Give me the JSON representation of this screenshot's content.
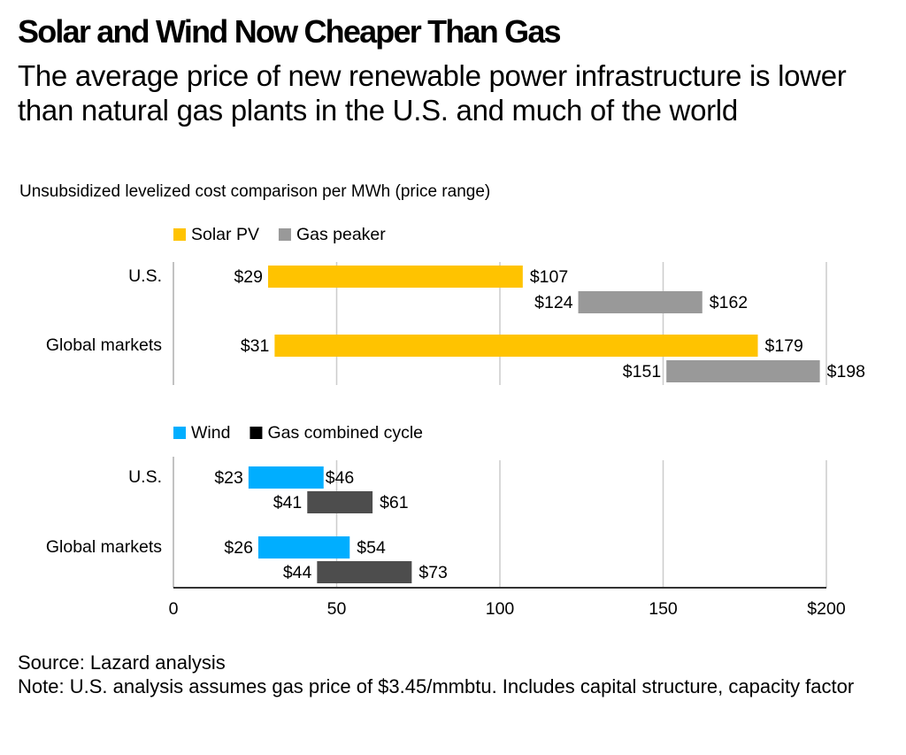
{
  "header": {
    "title": "Solar and Wind Now Cheaper Than Gas",
    "subtitle": "The average price of new renewable power infrastructure is lower than natural gas plants in the U.S. and much of the world",
    "units": "Unsubsidized levelized cost comparison per MWh (price range)"
  },
  "footer": {
    "source": "Source: Lazard analysis",
    "note": "Note: U.S. analysis assumes gas price of $3.45/mmbtu. Includes capital structure, capacity factor"
  },
  "chart_data": [
    {
      "type": "bar",
      "subtype": "floating-range-horizontal",
      "title": "Solar PV vs Gas peaker",
      "categories": [
        "U.S.",
        "Global markets"
      ],
      "series": [
        {
          "name": "Solar PV",
          "color": "#FFC300",
          "ranges": [
            [
              29,
              107
            ],
            [
              31,
              179
            ]
          ],
          "labels": [
            [
              "$29",
              "$107"
            ],
            [
              "$31",
              "$179"
            ]
          ]
        },
        {
          "name": "Gas peaker",
          "color": "#999999",
          "ranges": [
            [
              124,
              162
            ],
            [
              151,
              198
            ]
          ],
          "labels": [
            [
              "$124",
              "$162"
            ],
            [
              "$151",
              "$198"
            ]
          ]
        }
      ],
      "xlim": [
        0,
        200
      ],
      "grid": true,
      "legend": "top-left"
    },
    {
      "type": "bar",
      "subtype": "floating-range-horizontal",
      "title": "Wind vs Gas combined cycle",
      "categories": [
        "U.S.",
        "Global markets"
      ],
      "series": [
        {
          "name": "Wind",
          "color": "#00AEFF",
          "ranges": [
            [
              23,
              46
            ],
            [
              26,
              54
            ]
          ],
          "labels": [
            [
              "$23",
              "$46"
            ],
            [
              "$26",
              "$54"
            ]
          ]
        },
        {
          "name": "Gas combined cycle",
          "legend_color": "#000000",
          "color": "#4D4D4D",
          "ranges": [
            [
              41,
              61
            ],
            [
              44,
              73
            ]
          ],
          "labels": [
            [
              "$41",
              "$61"
            ],
            [
              "$44",
              "$73"
            ]
          ]
        }
      ],
      "xlim": [
        0,
        200
      ],
      "xticks": [
        0,
        50,
        100,
        150,
        200
      ],
      "xtick_labels": [
        "0",
        "50",
        "100",
        "150",
        "$200"
      ],
      "grid": true,
      "legend": "top-left"
    }
  ]
}
